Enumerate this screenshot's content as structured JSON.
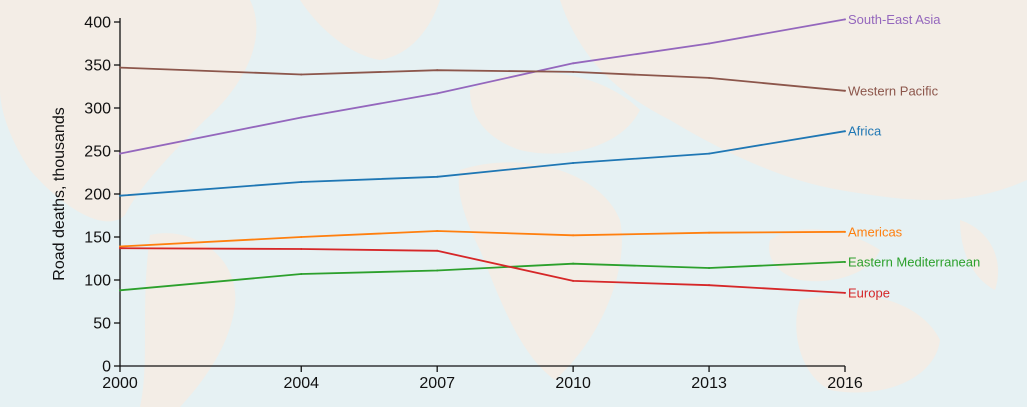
{
  "chart_data": {
    "type": "line",
    "title": "",
    "xlabel": "",
    "ylabel": "Road deaths, thousands",
    "x": [
      2000,
      2004,
      2007,
      2010,
      2013,
      2016
    ],
    "x_tick_labels": [
      "2000",
      "2004",
      "2007",
      "2010",
      "2013",
      "2016"
    ],
    "y_ticks": [
      0,
      50,
      100,
      150,
      200,
      250,
      300,
      350,
      400
    ],
    "y_tick_labels": [
      "0",
      "50",
      "100",
      "150",
      "200",
      "250",
      "300",
      "350",
      "400"
    ],
    "ylim": [
      0,
      400
    ],
    "grid": false,
    "legend": "series labels at right end of lines",
    "background": "world map",
    "series": [
      {
        "name": "South-East Asia",
        "color": "#9467bd",
        "values": [
          247,
          289,
          317,
          352,
          375,
          403
        ]
      },
      {
        "name": "Western Pacific",
        "color": "#8c564b",
        "values": [
          347,
          339,
          344,
          342,
          335,
          320
        ]
      },
      {
        "name": "Africa",
        "color": "#1f77b4",
        "values": [
          198,
          214,
          220,
          236,
          247,
          273
        ]
      },
      {
        "name": "Americas",
        "color": "#ff7f0e",
        "values": [
          139,
          150,
          157,
          152,
          155,
          156
        ]
      },
      {
        "name": "Eastern Mediterranean",
        "color": "#2ca02c",
        "values": [
          88,
          107,
          111,
          119,
          114,
          121
        ]
      },
      {
        "name": "Europe",
        "color": "#d62728",
        "values": [
          137,
          136,
          134,
          99,
          94,
          85
        ]
      }
    ]
  }
}
